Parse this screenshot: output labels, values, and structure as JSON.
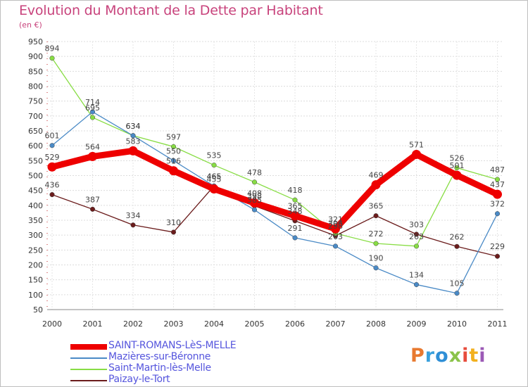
{
  "title": "Evolution du Montant de la Dette par Habitant",
  "unit": "(en €)",
  "logo": {
    "letters": [
      "P",
      "r",
      "o",
      "x",
      "i",
      "t",
      "i"
    ],
    "colors": [
      "#e8792f",
      "#3aa0dc",
      "#2f8fd6",
      "#8bc34a",
      "#e74c3c",
      "#f2b01e",
      "#9b59b6"
    ]
  },
  "chart_data": {
    "type": "line",
    "x": [
      "2000",
      "2001",
      "2002",
      "2003",
      "2004",
      "2005",
      "2006",
      "2007",
      "2008",
      "2009",
      "2010",
      "2011"
    ],
    "ylim": [
      50,
      950
    ],
    "yticks": [
      50,
      100,
      150,
      200,
      250,
      300,
      350,
      400,
      450,
      500,
      550,
      600,
      650,
      700,
      750,
      800,
      850,
      900,
      950
    ],
    "grid": true,
    "legend_position": "bottom-left",
    "series": [
      {
        "name": "SAINT-ROMANS-LèS-MELLE",
        "color": "#ee0000",
        "values": [
          529,
          564,
          583,
          516,
          455,
          408,
          365,
          321,
          469,
          571,
          501,
          437
        ]
      },
      {
        "name": "Mazières-sur-Béronne",
        "color": "#4a8ac6",
        "values": [
          601,
          714,
          634,
          550,
          465,
          385,
          291,
          263,
          190,
          134,
          105,
          372
        ]
      },
      {
        "name": "Saint-Martin-lès-Melle",
        "color": "#88dd44",
        "values": [
          894,
          695,
          634,
          597,
          535,
          478,
          418,
          306,
          272,
          263,
          526,
          487
        ]
      },
      {
        "name": "Paizay-le-Tort",
        "color": "#6b1c1c",
        "values": [
          436,
          387,
          334,
          310,
          465,
          398,
          348,
          298,
          365,
          303,
          262,
          229
        ]
      }
    ]
  }
}
